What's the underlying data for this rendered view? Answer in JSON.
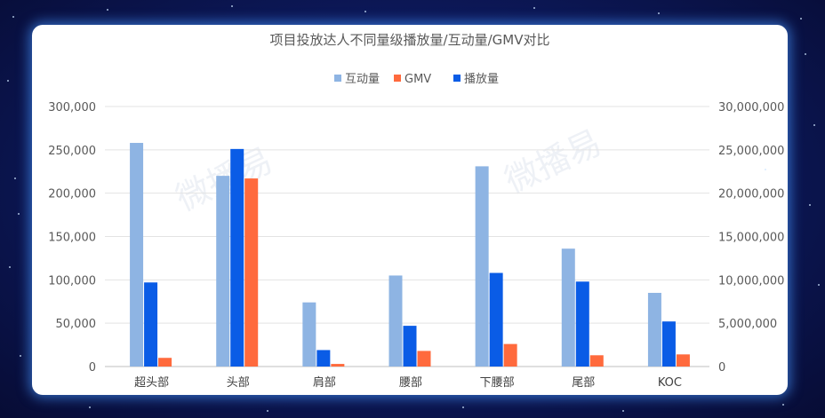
{
  "chart_data": {
    "type": "bar",
    "title": "项目投放达人不同量级播放量/互动量/GMV对比",
    "categories": [
      "超头部",
      "头部",
      "肩部",
      "腰部",
      "下腰部",
      "尾部",
      "KOC"
    ],
    "series": [
      {
        "name": "互动量",
        "axis": "left",
        "color": "#8eb4e3",
        "values": [
          258000,
          220000,
          74000,
          105000,
          231000,
          136000,
          85000
        ]
      },
      {
        "name": "GMV",
        "axis": "left",
        "color": "#ff6a3d",
        "values": [
          10000,
          217000,
          3000,
          18000,
          26000,
          13000,
          14000
        ]
      },
      {
        "name": "播放量",
        "axis": "right",
        "color": "#0a5ce6",
        "values": [
          9700000,
          25100000,
          1900000,
          4700000,
          10800000,
          9800000,
          5200000
        ]
      }
    ],
    "ylim_left": [
      0,
      300000
    ],
    "ylim_right": [
      0,
      30000000
    ],
    "left_ticks": [
      "0",
      "50,000",
      "100,000",
      "150,000",
      "200,000",
      "250,000",
      "300,000"
    ],
    "right_ticks": [
      "0",
      "5,000,000",
      "10,000,000",
      "15,000,000",
      "20,000,000",
      "25,000,000",
      "30,000,000"
    ],
    "grid": true,
    "legend": "top-center",
    "watermark": "微播易"
  }
}
